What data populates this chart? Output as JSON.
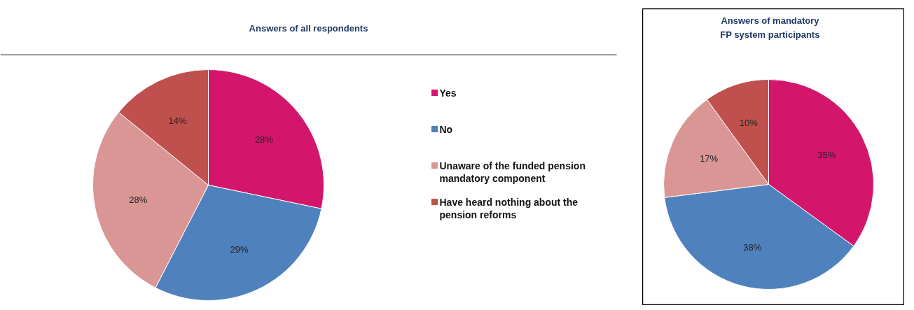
{
  "chart_data": [
    {
      "type": "pie",
      "title": "Answers of all respondents",
      "categories": [
        "Yes",
        "No",
        "Unaware of the funded pension mandatory component",
        "Have heard nothing about the pension reforms"
      ],
      "values": [
        28,
        29,
        28,
        14
      ],
      "value_labels": [
        "28%",
        "29%",
        "28%",
        "14%"
      ],
      "colors": [
        "#d3166c",
        "#4f81bd",
        "#d99694",
        "#c0504d"
      ],
      "legend": "right"
    },
    {
      "type": "pie",
      "title": "Answers of mandatory FP system participants",
      "categories": [
        null,
        null,
        null,
        null
      ],
      "values": [
        35,
        38,
        17,
        10
      ],
      "value_labels": [
        "35%",
        "38%",
        "17%",
        "10%"
      ],
      "colors": [
        "#d3166c",
        "#4f81bd",
        "#d99694",
        "#c0504d"
      ],
      "legend": false
    }
  ]
}
